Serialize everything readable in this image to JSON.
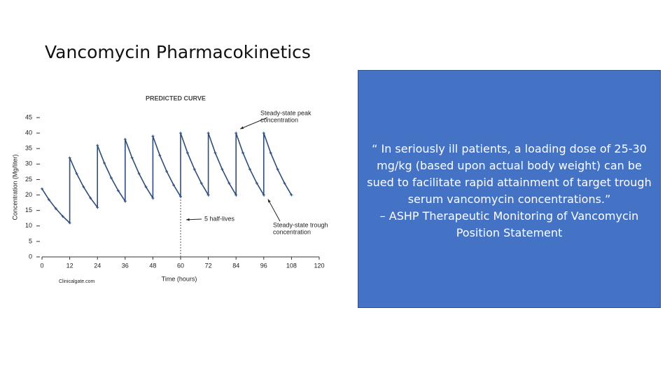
{
  "title": "Vancomycin Pharmacokinetics",
  "quote": [
    "“ In seriously ill patients, a loading dose of 25-30",
    "mg/kg (based upon actual body weight) can be",
    "sued to facilitate rapid attainment of target trough",
    "serum vancomycin concentrations.”",
    "– ASHP Therapeutic Monitoring of Vancomycin",
    "Position Statement"
  ],
  "chart_data": {
    "type": "line",
    "title": "PREDICTED CURVE",
    "x_label": "Time (hours)",
    "y_label": "Concentration (Mg/liter)",
    "xlim": [
      0,
      120
    ],
    "xticks": [
      0,
      12,
      24,
      36,
      48,
      60,
      72,
      84,
      96,
      108,
      120
    ],
    "ylim": [
      0,
      45
    ],
    "yticks": [
      0,
      5,
      10,
      15,
      20,
      25,
      30,
      35,
      40,
      45
    ],
    "series": [
      {
        "color": "#2e4d7b",
        "x": [
          0,
          3,
          6,
          9,
          12,
          12,
          15,
          18,
          21,
          24,
          24,
          27,
          30,
          33,
          36,
          36,
          39,
          42,
          45,
          48,
          48,
          51,
          54,
          57,
          60,
          60,
          63,
          66,
          69,
          72,
          72,
          75,
          78,
          81,
          84,
          84,
          87,
          90,
          93,
          96,
          96,
          99,
          102,
          105,
          108
        ],
        "values": [
          22,
          18.5,
          15.6,
          13.1,
          11,
          32,
          26.9,
          22.6,
          19,
          16,
          36,
          30.3,
          25.5,
          21.4,
          18,
          38,
          32,
          26.9,
          22.6,
          19,
          39,
          32.8,
          27.6,
          23.2,
          19.5,
          40,
          33.6,
          28.3,
          23.8,
          20,
          40,
          33.6,
          28.3,
          23.8,
          20,
          40,
          33.6,
          28.3,
          23.8,
          20,
          40,
          33.6,
          28.3,
          23.8,
          20
        ]
      }
    ],
    "reference_x": 60,
    "annotations": [
      {
        "text": [
          "Steady-state peak",
          "concentration"
        ],
        "x": 84,
        "y": 40
      },
      {
        "text": [
          "5 half-lives"
        ],
        "x": 60,
        "y": 12
      },
      {
        "text": [
          "Steady-state trough",
          "concentration"
        ],
        "x": 96,
        "y": 20
      }
    ],
    "source": "Clinicalgate.com"
  }
}
